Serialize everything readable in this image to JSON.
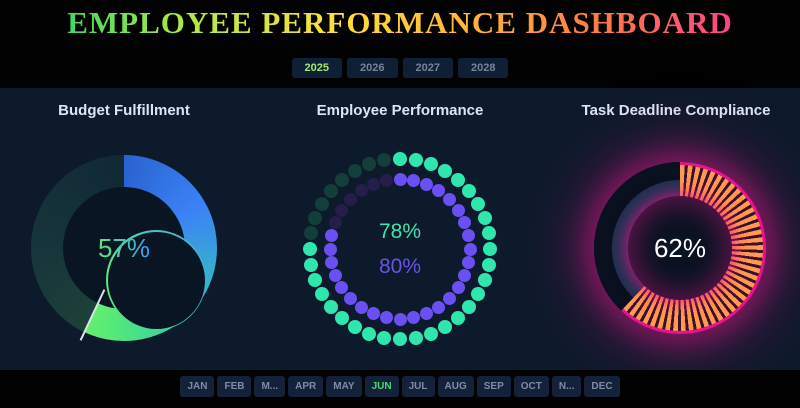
{
  "title": "EMPLOYEE PERFORMANCE DASHBOARD",
  "year_tabs": [
    {
      "label": "2025",
      "active": true
    },
    {
      "label": "2026",
      "active": false
    },
    {
      "label": "2027",
      "active": false
    },
    {
      "label": "2028",
      "active": false
    }
  ],
  "month_tabs": [
    {
      "label": "JAN",
      "active": false
    },
    {
      "label": "FEB",
      "active": false
    },
    {
      "label": "M...",
      "active": false
    },
    {
      "label": "APR",
      "active": false
    },
    {
      "label": "MAY",
      "active": false
    },
    {
      "label": "JUN",
      "active": true
    },
    {
      "label": "JUL",
      "active": false
    },
    {
      "label": "AUG",
      "active": false
    },
    {
      "label": "SEP",
      "active": false
    },
    {
      "label": "OCT",
      "active": false
    },
    {
      "label": "N...",
      "active": false
    },
    {
      "label": "DEC",
      "active": false
    }
  ],
  "charts": {
    "budget": {
      "title": "Budget Fulfillment",
      "value_label": "57%"
    },
    "performance": {
      "title": "Employee Performance",
      "outer_label": "78%",
      "inner_label": "80%"
    },
    "compliance": {
      "title": "Task Deadline Compliance",
      "value_label": "62%"
    }
  },
  "chart_data": [
    {
      "type": "donut",
      "title": "Budget Fulfillment",
      "value": 57,
      "unit": "%",
      "start_angle_deg": 0,
      "direction": "clockwise",
      "colors": {
        "arc_gradient": [
          "#2a63cf",
          "#3b82f6",
          "#36b4c8",
          "#3fd598",
          "#53e77c",
          "#63ef6e"
        ],
        "track_gradient": [
          "#1d4139",
          "#16343b",
          "#112936"
        ],
        "value_text_gradient": [
          "#5fe878",
          "#3b9df0"
        ],
        "end_tick": "#d7e4eb"
      }
    },
    {
      "type": "donut-dots",
      "title": "Employee Performance",
      "series": [
        {
          "name": "outer",
          "value": 78,
          "unit": "%",
          "dots": 36,
          "radius": 90,
          "dot_size": 14,
          "color": "#2fe6ac",
          "dim_color": "#143e39"
        },
        {
          "name": "inner",
          "value": 80,
          "unit": "%",
          "dots": 32,
          "radius": 70,
          "dot_size": 13,
          "color": "#6a50f2",
          "dim_color": "#251d4a"
        }
      ],
      "start_angle_deg": 0,
      "direction": "clockwise"
    },
    {
      "type": "donut",
      "title": "Task Deadline Compliance",
      "value": 62,
      "unit": "%",
      "start_angle_deg": 0,
      "direction": "clockwise",
      "colors": {
        "fill_stripe": "#ff9a4e",
        "fill_stripe_gap": "#3f0e2c",
        "fill_rim": "#e7158b",
        "track_inner": "#1e3152",
        "track_outer": "#0a101f",
        "glow": "#e7158b",
        "value_text": "#ffffff"
      }
    }
  ]
}
